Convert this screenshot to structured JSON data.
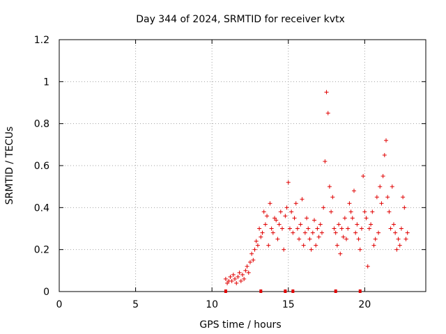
{
  "chart_data": {
    "type": "scatter",
    "title": "Day 344 of 2024, SRMTID for receiver kvtx",
    "xlabel": "GPS time / hours",
    "ylabel": "SRMTID / TECUs",
    "xlim": [
      0,
      24
    ],
    "ylim": [
      0,
      1.2
    ],
    "xticks": [
      0,
      5,
      10,
      15,
      20
    ],
    "yticks": [
      0,
      0.2,
      0.4,
      0.6,
      0.8,
      1,
      1.2
    ],
    "xtick_labels": [
      "0",
      "5",
      "10",
      "15",
      "20"
    ],
    "ytick_labels": [
      "0",
      "0.2",
      "0.4",
      "0.6",
      "0.8",
      "1",
      "1.2"
    ],
    "grid": true,
    "marker": "plus",
    "color": "#e00000",
    "series": [
      {
        "name": "SRMTID",
        "x": [
          10.9,
          11.0,
          11.1,
          11.2,
          11.3,
          11.4,
          11.5,
          11.6,
          11.7,
          11.8,
          11.9,
          12.0,
          12.1,
          12.2,
          12.3,
          12.4,
          12.5,
          12.6,
          12.7,
          12.8,
          12.9,
          13.0,
          13.1,
          13.2,
          13.3,
          13.4,
          13.5,
          13.6,
          13.7,
          13.8,
          13.9,
          14.0,
          14.1,
          14.2,
          14.3,
          14.4,
          14.5,
          14.6,
          14.7,
          14.8,
          14.9,
          15.0,
          15.1,
          15.2,
          15.3,
          15.4,
          15.5,
          15.6,
          15.7,
          15.8,
          15.9,
          16.0,
          16.1,
          16.2,
          16.3,
          16.4,
          16.5,
          16.6,
          16.7,
          16.8,
          16.9,
          17.0,
          17.1,
          17.2,
          17.3,
          17.4,
          17.5,
          17.6,
          17.7,
          17.8,
          17.9,
          18.0,
          18.1,
          18.2,
          18.3,
          18.4,
          18.5,
          18.6,
          18.7,
          18.8,
          18.9,
          19.0,
          19.1,
          19.2,
          19.3,
          19.4,
          19.5,
          19.6,
          19.7,
          19.8,
          19.9,
          20.0,
          20.1,
          20.2,
          20.3,
          20.4,
          20.5,
          20.6,
          20.7,
          20.8,
          20.9,
          21.0,
          21.1,
          21.2,
          21.3,
          21.4,
          21.5,
          21.6,
          21.7,
          21.8,
          21.9,
          22.0,
          22.1,
          22.2,
          22.3,
          22.4,
          22.5,
          22.6,
          22.7,
          22.8
        ],
        "y": [
          0.06,
          0.04,
          0.05,
          0.07,
          0.05,
          0.08,
          0.06,
          0.04,
          0.07,
          0.09,
          0.05,
          0.08,
          0.06,
          0.1,
          0.12,
          0.09,
          0.14,
          0.18,
          0.15,
          0.2,
          0.24,
          0.22,
          0.3,
          0.26,
          0.28,
          0.38,
          0.32,
          0.36,
          0.22,
          0.42,
          0.3,
          0.28,
          0.35,
          0.34,
          0.25,
          0.32,
          0.38,
          0.3,
          0.2,
          0.36,
          0.4,
          0.52,
          0.3,
          0.38,
          0.28,
          0.35,
          0.42,
          0.3,
          0.25,
          0.32,
          0.44,
          0.22,
          0.28,
          0.35,
          0.3,
          0.25,
          0.2,
          0.28,
          0.34,
          0.22,
          0.3,
          0.26,
          0.32,
          0.28,
          0.4,
          0.62,
          0.95,
          0.85,
          0.5,
          0.38,
          0.45,
          0.3,
          0.28,
          0.22,
          0.32,
          0.18,
          0.3,
          0.26,
          0.35,
          0.25,
          0.3,
          0.42,
          0.38,
          0.35,
          0.48,
          0.28,
          0.32,
          0.25,
          0.2,
          0.3,
          0.55,
          0.38,
          0.35,
          0.12,
          0.3,
          0.32,
          0.38,
          0.22,
          0.25,
          0.45,
          0.28,
          0.5,
          0.42,
          0.55,
          0.65,
          0.72,
          0.45,
          0.38,
          0.3,
          0.5,
          0.32,
          0.28,
          0.2,
          0.25,
          0.22,
          0.3,
          0.45,
          0.4,
          0.25,
          0.28
        ]
      }
    ],
    "baseline_marks_x": [
      10.9,
      13.2,
      14.8,
      15.3,
      18.1,
      19.7
    ]
  }
}
